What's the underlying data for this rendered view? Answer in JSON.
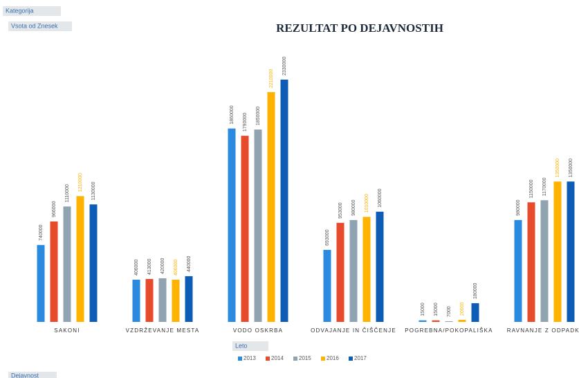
{
  "field_buttons": {
    "category": "Kategorija",
    "values": "Vsota od Znesek",
    "legend": "Leto",
    "axis": "Dejavnost"
  },
  "chart_data": {
    "type": "bar",
    "title": "REZULTAT PO DEJAVNOSTIH",
    "categories": [
      "SAKONI",
      "VZDRŽEVANJE MESTA",
      "VODO OSKRBA",
      "ODVAJANJE IN ČIŠČENJE",
      "POGREBNA/POKOPALIŠKA",
      "RAVNANJE Z ODPADKI"
    ],
    "series": [
      {
        "name": "2013",
        "color": "#2a8ae0",
        "values": [
          740000,
          406000,
          1860000,
          693000,
          15000,
          980000
        ]
      },
      {
        "name": "2014",
        "color": "#e84a2c",
        "values": [
          966000,
          413000,
          1790000,
          953000,
          15000,
          1150000
        ]
      },
      {
        "name": "2015",
        "color": "#8fa3b1",
        "values": [
          1110000,
          420000,
          1850000,
          980000,
          7000,
          1170000
        ]
      },
      {
        "name": "2016",
        "color": "#ffb300",
        "values": [
          1210000,
          406000,
          2210000,
          1010000,
          20000,
          1350000
        ]
      },
      {
        "name": "2017",
        "color": "#0d5cb6",
        "values": [
          1130000,
          440000,
          2330000,
          1060000,
          180000,
          1350000
        ]
      }
    ],
    "legend": "bottom"
  }
}
